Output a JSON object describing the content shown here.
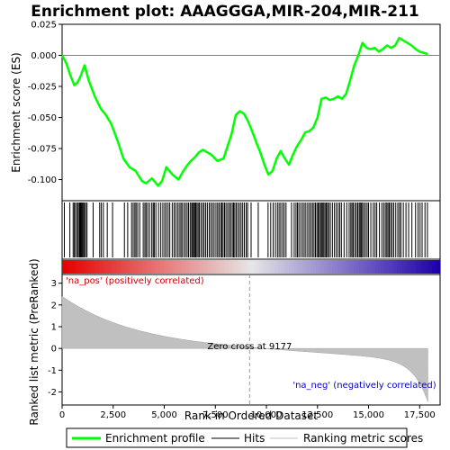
{
  "chart_data": {
    "type": "line",
    "title": "Enrichment plot: AAAGGGA,MIR-204,MIR-211",
    "xlabel": "Rank in Ordered Dataset",
    "ylabel_top": "Enrichment score (ES)",
    "ylabel_bottom": "Ranked list metric (PreRanked)",
    "x_range": [
      0,
      18500
    ],
    "x_ticks": [
      0,
      2500,
      5000,
      7500,
      10000,
      12500,
      15000,
      17500
    ],
    "x_tick_labels": [
      "0",
      "2,500",
      "5,000",
      "7,500",
      "10,000",
      "12,500",
      "15,000",
      "17,500"
    ],
    "es_range": [
      -0.117,
      0.025
    ],
    "es_ticks": [
      0.025,
      0.0,
      -0.025,
      -0.05,
      -0.075,
      -0.1
    ],
    "es_tick_labels": [
      "0.025",
      "0.000",
      "-0.025",
      "-0.050",
      "-0.075",
      "-0.100"
    ],
    "metric_range": [
      -2.6,
      3.4
    ],
    "metric_ticks": [
      3,
      2,
      1,
      0,
      -1,
      -2
    ],
    "metric_tick_labels": [
      "3",
      "2",
      "1",
      "0",
      "-1",
      "-2"
    ],
    "series": [
      {
        "name": "Enrichment profile",
        "color": "#00ff00",
        "x": [
          0,
          200,
          400,
          600,
          750,
          900,
          1100,
          1300,
          1600,
          1900,
          2100,
          2400,
          2700,
          3000,
          3300,
          3600,
          3900,
          4100,
          4400,
          4700,
          4900,
          5100,
          5400,
          5700,
          5900,
          6100,
          6300,
          6500,
          6700,
          6900,
          7100,
          7300,
          7600,
          7900,
          8100,
          8300,
          8500,
          8700,
          8900,
          9100,
          9300,
          9500,
          9700,
          9900,
          10100,
          10300,
          10500,
          10700,
          10900,
          11100,
          11300,
          11500,
          11700,
          11900,
          12100,
          12300,
          12500,
          12700,
          12900,
          13100,
          13300,
          13500,
          13700,
          13900,
          14100,
          14300,
          14500,
          14700,
          14900,
          15100,
          15300,
          15500,
          15700,
          15900,
          16100,
          16300,
          16500,
          16700,
          16900,
          17100,
          17300,
          17500,
          17700,
          17900
        ],
        "values": [
          0.0,
          -0.006,
          -0.016,
          -0.024,
          -0.022,
          -0.017,
          -0.008,
          -0.02,
          -0.033,
          -0.043,
          -0.047,
          -0.055,
          -0.068,
          -0.083,
          -0.09,
          -0.093,
          -0.101,
          -0.103,
          -0.099,
          -0.105,
          -0.101,
          -0.09,
          -0.096,
          -0.1,
          -0.094,
          -0.089,
          -0.085,
          -0.082,
          -0.078,
          -0.076,
          -0.078,
          -0.08,
          -0.085,
          -0.083,
          -0.073,
          -0.063,
          -0.048,
          -0.045,
          -0.047,
          -0.053,
          -0.061,
          -0.07,
          -0.078,
          -0.088,
          -0.096,
          -0.093,
          -0.083,
          -0.077,
          -0.083,
          -0.088,
          -0.08,
          -0.073,
          -0.068,
          -0.062,
          -0.061,
          -0.058,
          -0.05,
          -0.035,
          -0.034,
          -0.036,
          -0.035,
          -0.033,
          -0.035,
          -0.031,
          -0.02,
          -0.008,
          0.0,
          0.01,
          0.006,
          0.005,
          0.006,
          0.003,
          0.005,
          0.008,
          0.006,
          0.008,
          0.014,
          0.012,
          0.01,
          0.008,
          0.005,
          0.003,
          0.002,
          0.001
        ]
      },
      {
        "name": "Hits",
        "color": "#000000"
      },
      {
        "name": "Ranking metric scores",
        "color": "#c0c0c0"
      }
    ],
    "hits_x": [
      110,
      380,
      540,
      600,
      660,
      740,
      790,
      850,
      880,
      920,
      960,
      1000,
      1050,
      1090,
      1150,
      1220,
      1520,
      1840,
      1920,
      2020,
      2210,
      2470,
      3050,
      3210,
      3400,
      3480,
      3560,
      3620,
      3700,
      3800,
      3970,
      4050,
      4110,
      4190,
      4280,
      4390,
      4460,
      4510,
      4590,
      4720,
      4830,
      4930,
      5020,
      5100,
      5190,
      5270,
      5390,
      5480,
      5560,
      5650,
      5730,
      5810,
      5870,
      5960,
      6040,
      6120,
      6190,
      6270,
      6340,
      6390,
      6440,
      6490,
      6540,
      6600,
      6660,
      6720,
      6800,
      6880,
      6950,
      7030,
      7110,
      7200,
      7280,
      7360,
      7440,
      7530,
      7610,
      7680,
      7760,
      7820,
      7880,
      7950,
      8020,
      8100,
      8180,
      8250,
      8330,
      8390,
      8450,
      8520,
      8600,
      8680,
      8760,
      8840,
      8920,
      9010,
      9080,
      9250,
      9600,
      10080,
      10210,
      10330,
      10440,
      10540,
      10620,
      10700,
      10790,
      10870,
      10960,
      11230,
      11360,
      11450,
      11520,
      11590,
      11680,
      11770,
      11850,
      11930,
      12020,
      12100,
      12180,
      12260,
      12330,
      12400,
      12470,
      12530,
      12590,
      12650,
      12700,
      12760,
      12810,
      12870,
      12930,
      12990,
      13050,
      13130,
      13230,
      13330,
      13420,
      13510,
      13590,
      13670,
      13800,
      13930,
      14050,
      14130,
      14190,
      14250,
      14330,
      14400,
      14470,
      14540,
      14590,
      14640,
      14700,
      14770,
      14850,
      14930,
      15000,
      15110,
      15230,
      15320,
      15400,
      15530,
      15650,
      15740,
      15820,
      15890,
      15950,
      16010,
      16080,
      16150,
      16230,
      16330,
      16430,
      16510,
      16580,
      16700,
      16830,
      16960,
      17120,
      17300,
      17420,
      17520,
      17620,
      17760,
      17880
    ]
  },
  "annotations": {
    "pos_label": "'na_pos' (positively correlated)",
    "neg_label": "'na_neg' (negatively correlated)",
    "zero_cross": "Zero cross at 9177",
    "zero_cross_x": 9177,
    "pos_color": "#cc0000",
    "neg_color": "#0000cc"
  },
  "legend": {
    "items": [
      {
        "label": "Enrichment profile",
        "color": "#00ff00"
      },
      {
        "label": "Hits",
        "color": "#000000"
      },
      {
        "label": "Ranking metric scores",
        "color": "#c0c0c0"
      }
    ]
  }
}
